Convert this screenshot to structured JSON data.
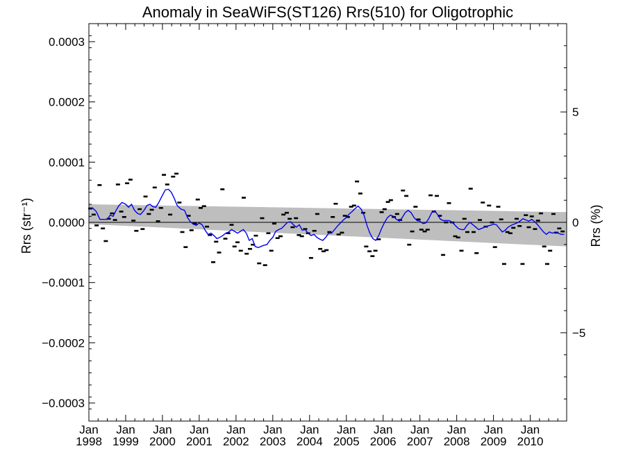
{
  "chart_data": {
    "type": "scatter",
    "title": "Anomaly in SeaWiFS(ST126) Rrs(510) for Oligotrophic",
    "ylabel_left": "Rrs (str⁻¹)",
    "ylabel_right": "Rrs (%)",
    "xlim": [
      1998.0,
      2010.99
    ],
    "ylim": [
      -0.00033,
      0.00033
    ],
    "ylim_right_percent": [
      -9.0,
      9.0
    ],
    "x_ticks": [
      {
        "label": "Jan",
        "year": "1998",
        "value": 1998.0
      },
      {
        "label": "Jan",
        "year": "1999",
        "value": 1999.0
      },
      {
        "label": "Jan",
        "year": "2000",
        "value": 2000.0
      },
      {
        "label": "Jan",
        "year": "2001",
        "value": 2001.0
      },
      {
        "label": "Jan",
        "year": "2002",
        "value": 2002.0
      },
      {
        "label": "Jan",
        "year": "2003",
        "value": 2003.0
      },
      {
        "label": "Jan",
        "year": "2004",
        "value": 2004.0
      },
      {
        "label": "Jan",
        "year": "2005",
        "value": 2005.0
      },
      {
        "label": "Jan",
        "year": "2006",
        "value": 2006.0
      },
      {
        "label": "Jan",
        "year": "2007",
        "value": 2007.0
      },
      {
        "label": "Jan",
        "year": "2008",
        "value": 2008.0
      },
      {
        "label": "Jan",
        "year": "2009",
        "value": 2009.0
      },
      {
        "label": "Jan",
        "year": "2010",
        "value": 2010.0
      }
    ],
    "y_ticks_left": [
      {
        "label": "0.0003",
        "value": 0.0003
      },
      {
        "label": "0.0002",
        "value": 0.0002
      },
      {
        "label": "0.0001",
        "value": 0.0001
      },
      {
        "label": "0.0000",
        "value": 0.0
      },
      {
        "label": "−0.0001",
        "value": -0.0001
      },
      {
        "label": "−0.0002",
        "value": -0.0002
      },
      {
        "label": "−0.0003",
        "value": -0.0003
      }
    ],
    "y_ticks_right": [
      {
        "label": "5",
        "value": 5
      },
      {
        "label": "0",
        "value": 0
      },
      {
        "label": "−5",
        "value": -5
      }
    ],
    "zero_line": 0,
    "uncertainty_band": {
      "color": "#bebebe",
      "upper": [
        [
          1998.0,
          3e-05
        ],
        [
          2010.99,
          1.7e-05
        ]
      ],
      "lower": [
        [
          1998.0,
          -3e-06
        ],
        [
          2010.99,
          -4e-05
        ]
      ]
    },
    "points": [
      [
        1997.96,
        8.2e-05
      ],
      [
        1998.04,
        2.3e-05
      ],
      [
        1998.13,
        1.3e-05
      ],
      [
        1998.21,
        -5e-06
      ],
      [
        1998.29,
        6.2e-05
      ],
      [
        1998.38,
        -1e-05
      ],
      [
        1998.46,
        -3.1e-05
      ],
      [
        1998.54,
        6e-06
      ],
      [
        1998.63,
        1.5e-05
      ],
      [
        1998.71,
        4e-06
      ],
      [
        1998.79,
        6.3e-05
      ],
      [
        1998.88,
        1.8e-05
      ],
      [
        1998.96,
        9e-06
      ],
      [
        1999.04,
        6.5e-05
      ],
      [
        1999.13,
        7.1e-05
      ],
      [
        1999.21,
        3e-06
      ],
      [
        1999.29,
        -1.4e-05
      ],
      [
        1999.38,
        2.2e-05
      ],
      [
        1999.46,
        -1.1e-05
      ],
      [
        1999.54,
        4.3e-05
      ],
      [
        1999.63,
        1.4e-05
      ],
      [
        1999.71,
        2.1e-05
      ],
      [
        1999.79,
        5.8e-05
      ],
      [
        1999.88,
        2e-06
      ],
      [
        1999.96,
        2.4e-05
      ],
      [
        2000.04,
        7.9e-05
      ],
      [
        2000.13,
        6.3e-05
      ],
      [
        2000.21,
        1.3e-05
      ],
      [
        2000.29,
        7.6e-05
      ],
      [
        2000.38,
        8.1e-05
      ],
      [
        2000.46,
        3.3e-05
      ],
      [
        2000.54,
        -1.6e-05
      ],
      [
        2000.63,
        -4.1e-05
      ],
      [
        2000.71,
        1.1e-05
      ],
      [
        2000.79,
        -1.3e-05
      ],
      [
        2000.88,
        -2e-06
      ],
      [
        2000.96,
        3.8e-05
      ],
      [
        2001.04,
        2.4e-05
      ],
      [
        2001.13,
        2.7e-05
      ],
      [
        2001.21,
        -7e-06
      ],
      [
        2001.29,
        -2.1e-05
      ],
      [
        2001.38,
        -6.6e-05
      ],
      [
        2001.46,
        -3.2e-05
      ],
      [
        2001.54,
        -5e-05
      ],
      [
        2001.63,
        5.5e-05
      ],
      [
        2001.71,
        -2.7e-05
      ],
      [
        2001.79,
        -1.8e-05
      ],
      [
        2001.88,
        -4e-06
      ],
      [
        2001.96,
        -4e-05
      ],
      [
        2002.04,
        -3.3e-05
      ],
      [
        2002.13,
        -4.7e-05
      ],
      [
        2002.21,
        4.1e-05
      ],
      [
        2002.29,
        -5.2e-05
      ],
      [
        2002.38,
        -4.4e-05
      ],
      [
        2002.46,
        -3.7e-05
      ],
      [
        2002.54,
        -2.2e-05
      ],
      [
        2002.63,
        -6.8e-05
      ],
      [
        2002.71,
        7e-06
      ],
      [
        2002.79,
        -7.1e-05
      ],
      [
        2002.88,
        -1.8e-05
      ],
      [
        2002.96,
        -4.7e-05
      ],
      [
        2003.04,
        -2e-06
      ],
      [
        2003.13,
        -2.6e-05
      ],
      [
        2003.21,
        -2.3e-05
      ],
      [
        2003.29,
        1.3e-05
      ],
      [
        2003.38,
        1.6e-05
      ],
      [
        2003.46,
        6e-06
      ],
      [
        2003.54,
        -8e-06
      ],
      [
        2003.63,
        7e-06
      ],
      [
        2003.71,
        -2.1e-05
      ],
      [
        2003.79,
        -2.3e-05
      ],
      [
        2003.88,
        -1.1e-05
      ],
      [
        2003.96,
        -1.8e-05
      ],
      [
        2004.04,
        -5.9e-05
      ],
      [
        2004.13,
        -1.4e-05
      ],
      [
        2004.21,
        1.4e-05
      ],
      [
        2004.29,
        -4.4e-05
      ],
      [
        2004.38,
        -4.8e-05
      ],
      [
        2004.46,
        -4.6e-05
      ],
      [
        2004.54,
        -1.6e-05
      ],
      [
        2004.63,
        9e-06
      ],
      [
        2004.71,
        3.1e-05
      ],
      [
        2004.79,
        -2e-05
      ],
      [
        2004.88,
        -1.7e-05
      ],
      [
        2004.96,
        1.1e-05
      ],
      [
        2005.04,
        9e-06
      ],
      [
        2005.13,
        2.6e-05
      ],
      [
        2005.21,
        2.8e-05
      ],
      [
        2005.29,
        6.8e-05
      ],
      [
        2005.38,
        4.8e-05
      ],
      [
        2005.46,
        1.6e-05
      ],
      [
        2005.54,
        -4e-05
      ],
      [
        2005.63,
        -4.8e-05
      ],
      [
        2005.71,
        -5.6e-05
      ],
      [
        2005.79,
        -4.7e-05
      ],
      [
        2005.88,
        -2.8e-05
      ],
      [
        2005.96,
        1.7e-05
      ],
      [
        2006.04,
        2.2e-05
      ],
      [
        2006.13,
        3.4e-05
      ],
      [
        2006.21,
        3.7e-05
      ],
      [
        2006.29,
        9e-06
      ],
      [
        2006.38,
        1.4e-05
      ],
      [
        2006.46,
        4e-06
      ],
      [
        2006.54,
        5.3e-05
      ],
      [
        2006.63,
        4.4e-05
      ],
      [
        2006.71,
        -3.7e-05
      ],
      [
        2006.79,
        -1.5e-05
      ],
      [
        2006.88,
        2.6e-05
      ],
      [
        2006.96,
        5e-06
      ],
      [
        2007.04,
        -1.2e-05
      ],
      [
        2007.13,
        -1.5e-05
      ],
      [
        2007.21,
        -1.2e-05
      ],
      [
        2007.29,
        4.5e-05
      ],
      [
        2007.38,
        1.8e-05
      ],
      [
        2007.46,
        4.4e-05
      ],
      [
        2007.54,
        1.1e-05
      ],
      [
        2007.63,
        -5.4e-05
      ],
      [
        2007.71,
        0.0
      ],
      [
        2007.79,
        3.2e-05
      ],
      [
        2007.88,
        0.0
      ],
      [
        2007.96,
        -2.3e-05
      ],
      [
        2008.04,
        -2.5e-05
      ],
      [
        2008.13,
        -4.7e-05
      ],
      [
        2008.21,
        6e-06
      ],
      [
        2008.29,
        -1.6e-05
      ],
      [
        2008.38,
        5.6e-05
      ],
      [
        2008.46,
        -1.6e-05
      ],
      [
        2008.54,
        -5.1e-05
      ],
      [
        2008.63,
        4e-06
      ],
      [
        2008.71,
        3.3e-05
      ],
      [
        2008.79,
        -7e-06
      ],
      [
        2008.88,
        2.8e-05
      ],
      [
        2008.96,
        0.0
      ],
      [
        2009.04,
        -4.1e-05
      ],
      [
        2009.13,
        2.6e-05
      ],
      [
        2009.21,
        5e-06
      ],
      [
        2009.29,
        -6.9e-05
      ],
      [
        2009.38,
        -1.6e-05
      ],
      [
        2009.46,
        -1.8e-05
      ],
      [
        2009.54,
        -9e-06
      ],
      [
        2009.63,
        6e-06
      ],
      [
        2009.71,
        -6e-06
      ],
      [
        2009.79,
        -6.9e-05
      ],
      [
        2009.88,
        1.2e-05
      ],
      [
        2009.96,
        -8e-06
      ],
      [
        2010.04,
        1e-05
      ],
      [
        2010.13,
        -1.1e-05
      ],
      [
        2010.21,
        3e-06
      ],
      [
        2010.29,
        1.5e-05
      ],
      [
        2010.38,
        -4e-05
      ],
      [
        2010.46,
        -6.9e-05
      ],
      [
        2010.54,
        -4.7e-05
      ],
      [
        2010.63,
        1.4e-05
      ],
      [
        2010.71,
        -1.7e-05
      ],
      [
        2010.79,
        -1e-05
      ],
      [
        2010.88,
        -1.5e-05
      ]
    ],
    "smoothed_line": {
      "color": "#0000ee",
      "points": [
        [
          1998.0,
          2.4e-05
        ],
        [
          1998.1,
          2.4e-05
        ],
        [
          1998.2,
          1.8e-05
        ],
        [
          1998.3,
          5e-06
        ],
        [
          1998.4,
          5e-06
        ],
        [
          1998.5,
          5e-06
        ],
        [
          1998.58,
          1.2e-05
        ],
        [
          1998.66,
          1e-05
        ],
        [
          1998.74,
          2e-05
        ],
        [
          1998.82,
          2.8e-05
        ],
        [
          1998.9,
          3.3e-05
        ],
        [
          1999.0,
          3e-05
        ],
        [
          1999.08,
          2.5e-05
        ],
        [
          1999.16,
          3e-05
        ],
        [
          1999.24,
          2e-05
        ],
        [
          1999.32,
          1.5e-05
        ],
        [
          1999.4,
          1.3e-05
        ],
        [
          1999.5,
          2e-05
        ],
        [
          1999.58,
          2.8e-05
        ],
        [
          1999.66,
          3e-05
        ],
        [
          1999.74,
          2.6e-05
        ],
        [
          1999.82,
          2.5e-05
        ],
        [
          1999.9,
          3.3e-05
        ],
        [
          2000.0,
          4.5e-05
        ],
        [
          2000.08,
          5.4e-05
        ],
        [
          2000.16,
          5.5e-05
        ],
        [
          2000.24,
          5e-05
        ],
        [
          2000.32,
          4e-05
        ],
        [
          2000.4,
          2.8e-05
        ],
        [
          2000.5,
          2.2e-05
        ],
        [
          2000.6,
          2e-05
        ],
        [
          2000.68,
          8e-06
        ],
        [
          2000.76,
          1e-06
        ],
        [
          2000.84,
          -3e-06
        ],
        [
          2000.92,
          -5e-06
        ],
        [
          2001.0,
          -1e-06
        ],
        [
          2001.08,
          -4e-06
        ],
        [
          2001.16,
          -1.3e-05
        ],
        [
          2001.24,
          -2e-05
        ],
        [
          2001.32,
          -1.8e-05
        ],
        [
          2001.4,
          -2.2e-05
        ],
        [
          2001.48,
          -2.7e-05
        ],
        [
          2001.56,
          -2.5e-05
        ],
        [
          2001.64,
          -2.2e-05
        ],
        [
          2001.72,
          -1.8e-05
        ],
        [
          2001.8,
          -1.6e-05
        ],
        [
          2001.88,
          -1.2e-05
        ],
        [
          2001.96,
          -1.5e-05
        ],
        [
          2002.04,
          -1.8e-05
        ],
        [
          2002.12,
          -1.5e-05
        ],
        [
          2002.2,
          -1.2e-05
        ],
        [
          2002.28,
          -1.8e-05
        ],
        [
          2002.36,
          -3e-05
        ],
        [
          2002.44,
          -2.7e-05
        ],
        [
          2002.52,
          -4e-05
        ],
        [
          2002.6,
          -4.2e-05
        ],
        [
          2002.68,
          -4e-05
        ],
        [
          2002.76,
          -3.8e-05
        ],
        [
          2002.84,
          -3.7e-05
        ],
        [
          2002.92,
          -3e-05
        ],
        [
          2003.0,
          -2.5e-05
        ],
        [
          2003.08,
          -1.5e-05
        ],
        [
          2003.16,
          -1.2e-05
        ],
        [
          2003.24,
          -1e-05
        ],
        [
          2003.32,
          -5e-06
        ],
        [
          2003.4,
          0.0
        ],
        [
          2003.48,
          1e-06
        ],
        [
          2003.56,
          -4e-06
        ],
        [
          2003.64,
          -8e-06
        ],
        [
          2003.72,
          -4e-06
        ],
        [
          2003.8,
          -1.3e-05
        ],
        [
          2003.88,
          -1.2e-05
        ],
        [
          2003.96,
          -1.8e-05
        ],
        [
          2004.04,
          -2.2e-05
        ],
        [
          2004.12,
          -2e-05
        ],
        [
          2004.2,
          -2.5e-05
        ],
        [
          2004.28,
          -2.8e-05
        ],
        [
          2004.36,
          -3e-05
        ],
        [
          2004.44,
          -2.5e-05
        ],
        [
          2004.52,
          -1.8e-05
        ],
        [
          2004.6,
          -1.8e-05
        ],
        [
          2004.68,
          -1.2e-05
        ],
        [
          2004.76,
          -6e-06
        ],
        [
          2004.84,
          -1e-06
        ],
        [
          2004.92,
          4e-06
        ],
        [
          2005.0,
          8e-06
        ],
        [
          2005.08,
          1.4e-05
        ],
        [
          2005.16,
          1.8e-05
        ],
        [
          2005.24,
          2.3e-05
        ],
        [
          2005.32,
          2.7e-05
        ],
        [
          2005.4,
          2.2e-05
        ],
        [
          2005.48,
          1.2e-05
        ],
        [
          2005.56,
          -5e-06
        ],
        [
          2005.64,
          -1.8e-05
        ],
        [
          2005.72,
          -2.7e-05
        ],
        [
          2005.8,
          -3e-05
        ],
        [
          2005.88,
          -2.2e-05
        ],
        [
          2005.96,
          -1e-05
        ],
        [
          2006.04,
          0.0
        ],
        [
          2006.12,
          8e-06
        ],
        [
          2006.2,
          1.2e-05
        ],
        [
          2006.28,
          1e-05
        ],
        [
          2006.36,
          5e-06
        ],
        [
          2006.44,
          2e-06
        ],
        [
          2006.52,
          8e-06
        ],
        [
          2006.6,
          1.6e-05
        ],
        [
          2006.68,
          2e-05
        ],
        [
          2006.76,
          1.6e-05
        ],
        [
          2006.84,
          8e-06
        ],
        [
          2006.92,
          3e-06
        ],
        [
          2007.0,
          2e-06
        ],
        [
          2007.08,
          -2e-06
        ],
        [
          2007.16,
          -1e-06
        ],
        [
          2007.24,
          6e-06
        ],
        [
          2007.32,
          1.6e-05
        ],
        [
          2007.4,
          1.9e-05
        ],
        [
          2007.48,
          1.3e-05
        ],
        [
          2007.56,
          5e-06
        ],
        [
          2007.64,
          3e-06
        ],
        [
          2007.72,
          3e-06
        ],
        [
          2007.8,
          3e-06
        ],
        [
          2007.88,
          0.0
        ],
        [
          2007.96,
          -5e-06
        ],
        [
          2008.04,
          -1e-05
        ],
        [
          2008.12,
          -1.2e-05
        ],
        [
          2008.2,
          -1.2e-05
        ],
        [
          2008.28,
          -5e-06
        ],
        [
          2008.36,
          0.0
        ],
        [
          2008.44,
          -4e-06
        ],
        [
          2008.52,
          -8e-06
        ],
        [
          2008.6,
          -1.2e-05
        ],
        [
          2008.68,
          -1e-05
        ],
        [
          2008.76,
          -8e-06
        ],
        [
          2008.84,
          -6e-06
        ],
        [
          2008.92,
          -5e-06
        ],
        [
          2009.0,
          -3e-06
        ],
        [
          2009.08,
          -4e-06
        ],
        [
          2009.16,
          -1e-05
        ],
        [
          2009.24,
          -1.6e-05
        ],
        [
          2009.32,
          -1.3e-05
        ],
        [
          2009.4,
          -8e-06
        ],
        [
          2009.48,
          -5e-06
        ],
        [
          2009.56,
          -3e-06
        ],
        [
          2009.64,
          -1e-06
        ],
        [
          2009.72,
          2e-06
        ],
        [
          2009.8,
          6e-06
        ],
        [
          2009.88,
          4e-06
        ],
        [
          2009.96,
          2e-06
        ],
        [
          2010.04,
          5e-06
        ],
        [
          2010.12,
          1e-06
        ],
        [
          2010.2,
          -4e-06
        ],
        [
          2010.28,
          -1e-05
        ],
        [
          2010.36,
          -1.6e-05
        ],
        [
          2010.44,
          -2e-05
        ],
        [
          2010.52,
          -1.6e-05
        ],
        [
          2010.6,
          -1.8e-05
        ],
        [
          2010.68,
          -1.6e-05
        ],
        [
          2010.76,
          -1.8e-05
        ],
        [
          2010.84,
          -2e-05
        ],
        [
          2010.92,
          -2e-05
        ]
      ]
    },
    "grid": false,
    "legend": "none"
  }
}
